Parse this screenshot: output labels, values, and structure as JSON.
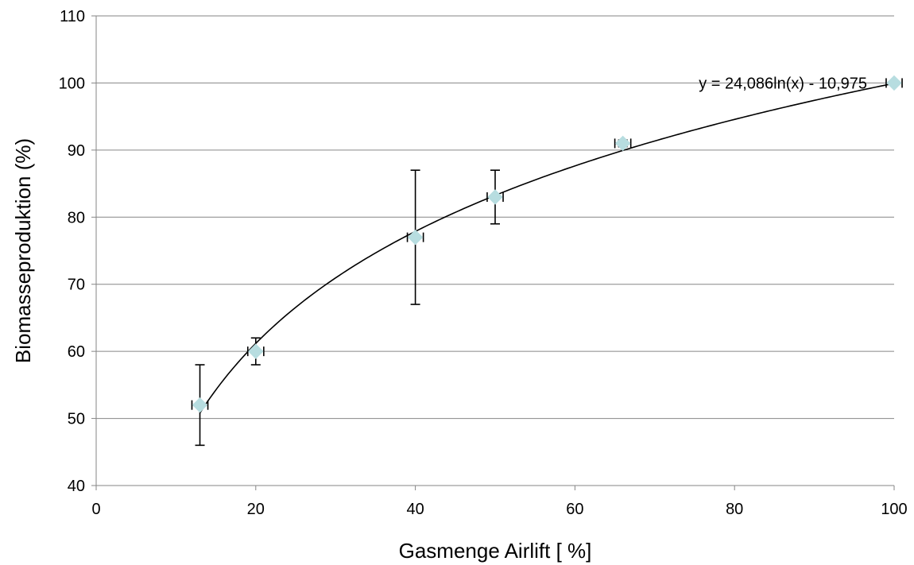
{
  "chart_data": {
    "type": "scatter",
    "title": "",
    "xlabel": "Gasmenge Airlift [ %]",
    "ylabel": "Biomasseproduktion (%)",
    "xlim": [
      0,
      100
    ],
    "ylim": [
      40,
      110
    ],
    "x_ticks": [
      0,
      20,
      40,
      60,
      80,
      100
    ],
    "y_ticks": [
      40,
      50,
      60,
      70,
      80,
      90,
      100,
      110
    ],
    "x_tick_labels": [
      "0",
      "20",
      "40",
      "60",
      "80",
      "100"
    ],
    "y_tick_labels": [
      "40",
      "50",
      "60",
      "70",
      "80",
      "90",
      "100",
      "110"
    ],
    "grid": "horizontal",
    "legend": "none",
    "marker": "diamond",
    "marker_color": "#b7dde0",
    "points": [
      {
        "x": 13,
        "y": 52,
        "y_err": 6,
        "x_err": 1
      },
      {
        "x": 20,
        "y": 60,
        "y_err": 2,
        "x_err": 1
      },
      {
        "x": 40,
        "y": 77,
        "y_err": 10,
        "x_err": 1
      },
      {
        "x": 50,
        "y": 83,
        "y_err": 4,
        "x_err": 1
      },
      {
        "x": 66,
        "y": 91,
        "y_err": 0.5,
        "x_err": 1
      },
      {
        "x": 100,
        "y": 100,
        "y_err": 0,
        "x_err": 1
      }
    ],
    "trendline": {
      "type": "logarithmic",
      "a": 24.086,
      "b": -10.975,
      "x_range": [
        13,
        100
      ],
      "equation_label": "y = 24,086ln(x) - 10,975"
    }
  }
}
